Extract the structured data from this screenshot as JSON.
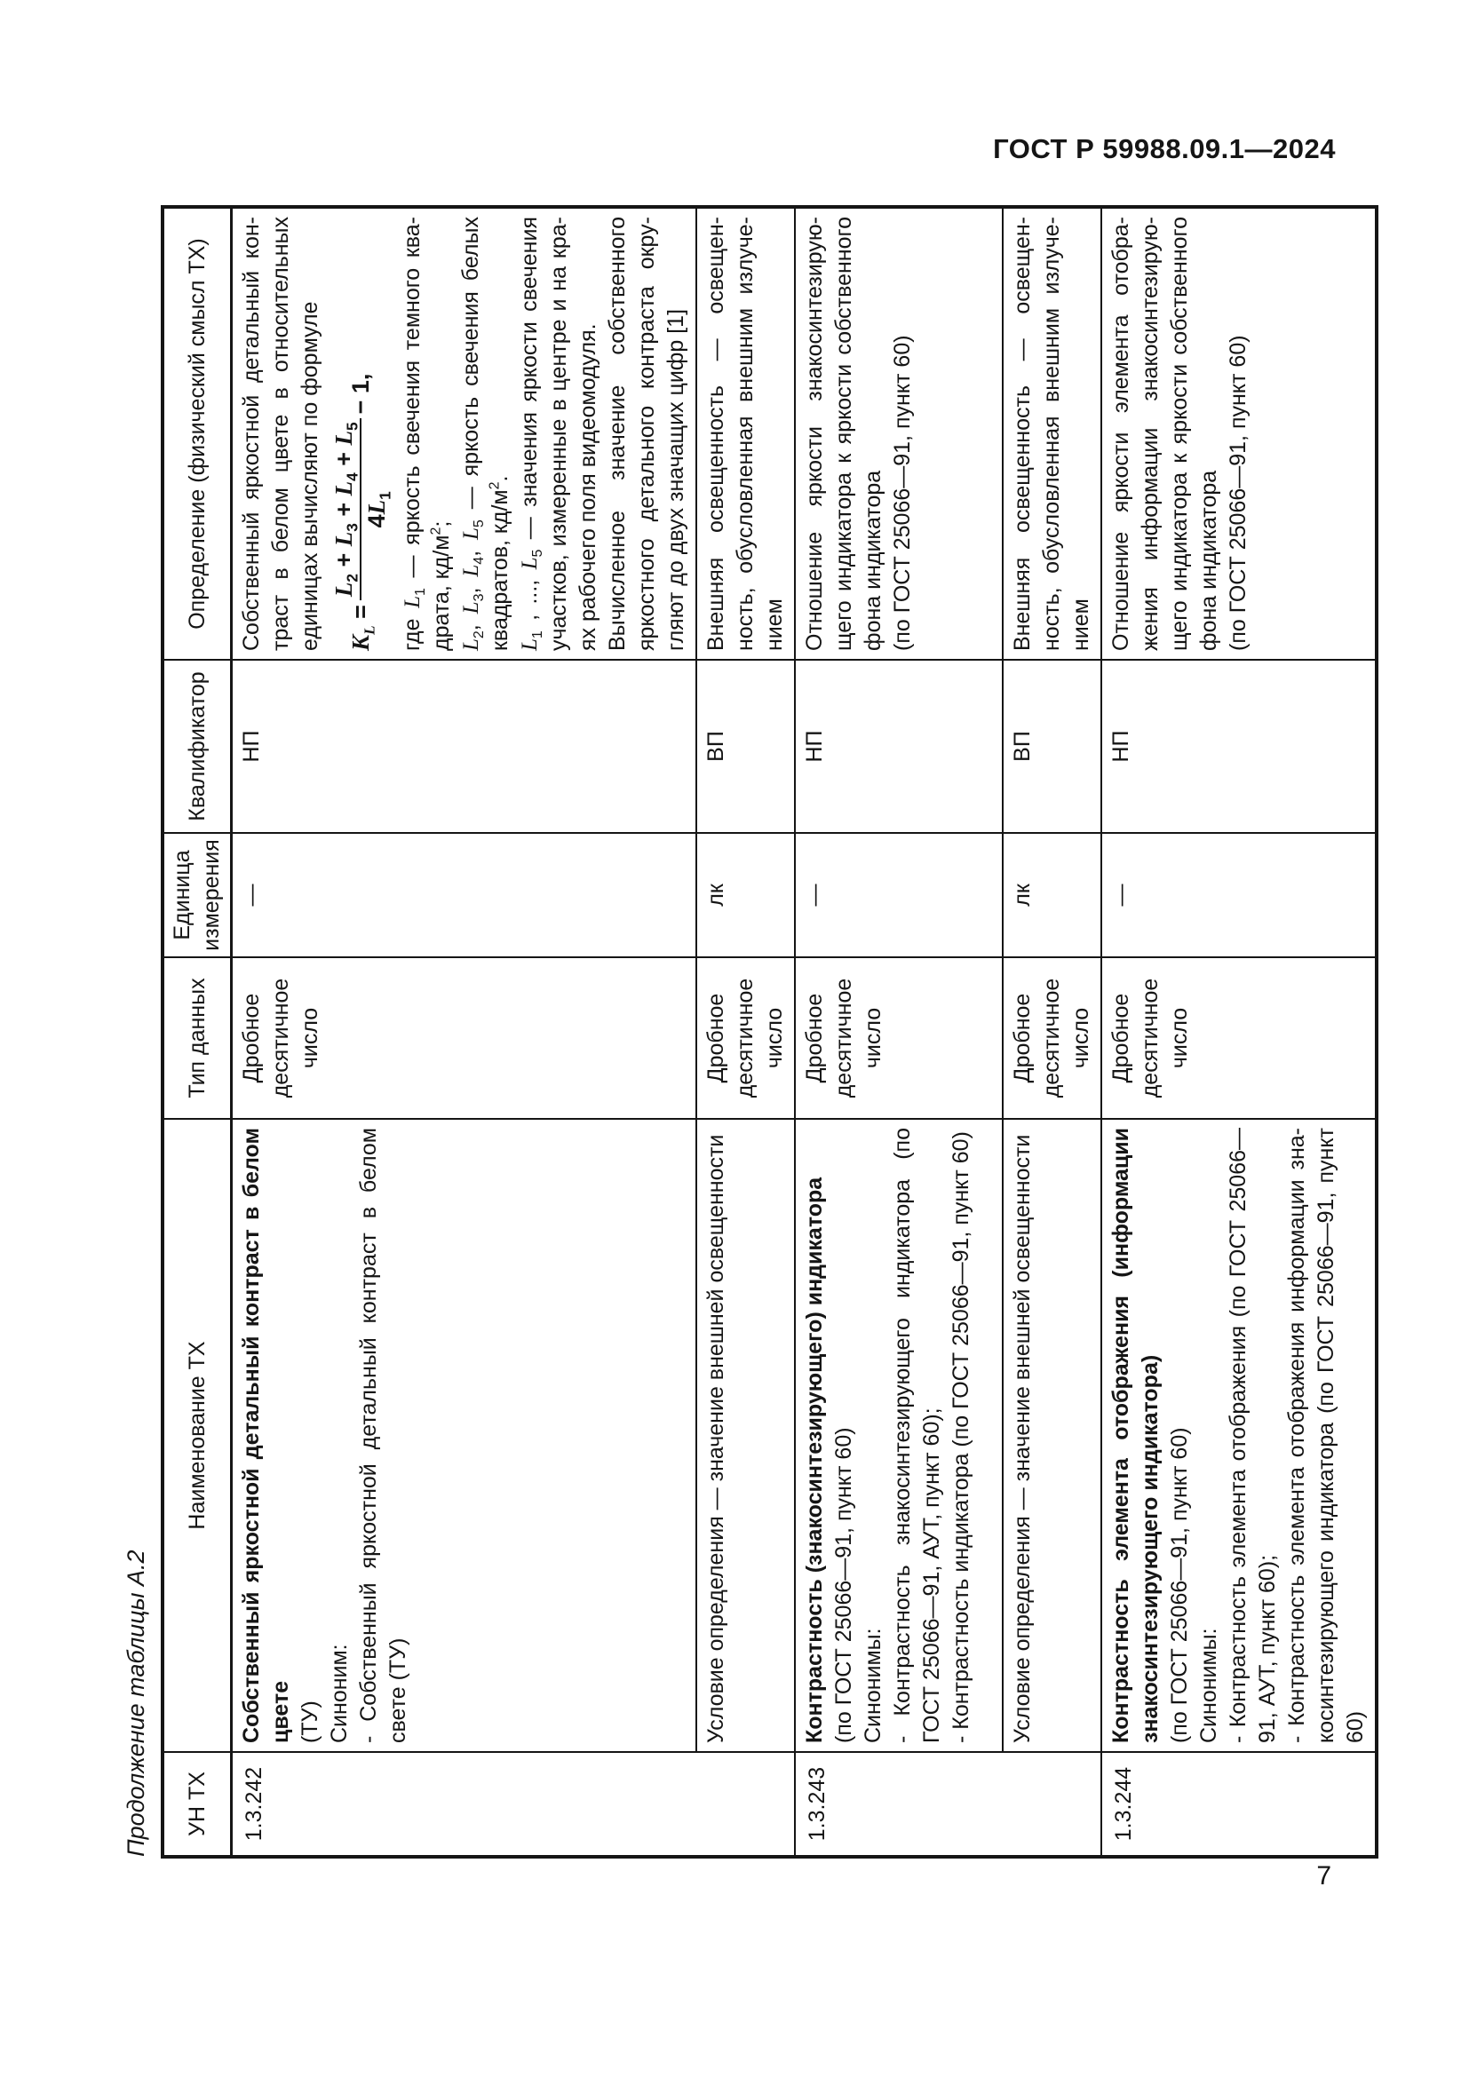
{
  "page": {
    "header": "ГОСТ Р 59988.09.1—2024",
    "page_number": "7",
    "table_caption": "Продолжение таблицы А.2"
  },
  "table": {
    "columns": [
      {
        "id": "un",
        "label": "УН ТХ"
      },
      {
        "id": "name",
        "label": "Наименование ТХ"
      },
      {
        "id": "type",
        "label": "Тип данных"
      },
      {
        "id": "unit",
        "label": "Единица измерения"
      },
      {
        "id": "qual",
        "label": "Квалификатор"
      },
      {
        "id": "def",
        "label": "Определение (физический смысл ТХ)"
      }
    ],
    "rows": [
      {
        "un": "1.3.242",
        "un_span": 2,
        "name": [
          {
            "runs": [
              {
                "t": "Собственный яркостной детальный контраст в белом цвете",
                "b": true
              }
            ]
          },
          {
            "runs": [
              {
                "t": "(ТУ)"
              }
            ]
          },
          {
            "runs": [
              {
                "t": "Синоним:"
              }
            ]
          },
          {
            "runs": [
              {
                "t": "- Собственный яркостной детальный контраст в белом свете (ТУ)"
              }
            ]
          }
        ],
        "type": [
          "Дробное",
          "десятичное",
          "число"
        ],
        "unit": "—",
        "qual": "НП",
        "def": [
          {
            "runs": [
              {
                "t": "Собственный яркостной детальный кон­траст в белом цвете в относительных единицах вычисляют по формуле"
              }
            ]
          },
          {
            "formula": {
              "lhs": [
                {
                  "t": "K",
                  "v": true,
                  "b": true
                },
                {
                  "t": "L",
                  "sub": true,
                  "v": true,
                  "b": true
                },
                {
                  "t": " = ",
                  "b": true
                }
              ],
              "num": [
                {
                  "t": "L",
                  "v": true,
                  "b": true
                },
                {
                  "t": "2",
                  "sub": true,
                  "b": true
                },
                {
                  "t": " + ",
                  "b": true
                },
                {
                  "t": "L",
                  "v": true,
                  "b": true
                },
                {
                  "t": "3",
                  "sub": true,
                  "b": true
                },
                {
                  "t": " + ",
                  "b": true
                },
                {
                  "t": "L",
                  "v": true,
                  "b": true
                },
                {
                  "t": "4",
                  "sub": true,
                  "b": true
                },
                {
                  "t": " + ",
                  "b": true
                },
                {
                  "t": "L",
                  "v": true,
                  "b": true
                },
                {
                  "t": "5",
                  "sub": true,
                  "b": true
                }
              ],
              "den": [
                {
                  "t": "4",
                  "b": true
                },
                {
                  "t": "L",
                  "v": true,
                  "b": true
                },
                {
                  "t": "1",
                  "sub": true,
                  "b": true
                }
              ],
              "tail": [
                {
                  "t": " − 1,",
                  "b": true
                }
              ]
            }
          },
          {
            "runs": [
              {
                "t": "где "
              },
              {
                "t": "L",
                "v": true
              },
              {
                "t": "1",
                "sub": true
              },
              {
                "t": " — яркость свечения темного ква­драта, кд/м"
              },
              {
                "t": "2",
                "sup": true
              },
              {
                "t": ";"
              }
            ]
          },
          {
            "runs": [
              {
                "t": "L",
                "v": true
              },
              {
                "t": "2",
                "sub": true
              },
              {
                "t": ", "
              },
              {
                "t": "L",
                "v": true
              },
              {
                "t": "3",
                "sub": true
              },
              {
                "t": ", "
              },
              {
                "t": "L",
                "v": true
              },
              {
                "t": "4",
                "sub": true
              },
              {
                "t": ", "
              },
              {
                "t": "L",
                "v": true
              },
              {
                "t": "5",
                "sub": true
              },
              {
                "t": " — яркость свечения белых квадратов, кд/м"
              },
              {
                "t": "2",
                "sup": true
              },
              {
                "t": "."
              }
            ]
          },
          {
            "runs": [
              {
                "t": "L",
                "v": true
              },
              {
                "t": "1",
                "sub": true
              },
              {
                "t": " , ..., "
              },
              {
                "t": "L",
                "v": true
              },
              {
                "t": "5",
                "sub": true
              },
              {
                "t": " — значения яркости свечения участков, измеренные в центре и на кра­ях рабочего поля видеомодуля."
              }
            ]
          },
          {
            "runs": [
              {
                "t": "Вычисленное значение собственного яркостного детального контраста окру­гляют до двух значащих цифр [1]"
              }
            ]
          }
        ]
      },
      {
        "sub": true,
        "name": [
          {
            "runs": [
              {
                "t": "Условие определения — значение внешней освещенно­сти"
              }
            ]
          }
        ],
        "type": [
          "Дробное",
          "десятичное",
          "число"
        ],
        "unit": "лк",
        "qual": "ВП",
        "def": [
          {
            "runs": [
              {
                "t": "Внешняя освещенность — освещен­ность, обусловленная внешним излуче­нием"
              }
            ]
          }
        ]
      },
      {
        "un": "1.3.243",
        "un_span": 2,
        "name": [
          {
            "runs": [
              {
                "t": "Контрастность (знакосинтезирующего) индикатора",
                "b": true
              }
            ]
          },
          {
            "runs": [
              {
                "t": "(по ГОСТ 25066—91, пункт 60)"
              }
            ]
          },
          {
            "runs": [
              {
                "t": "Синонимы:"
              }
            ]
          },
          {
            "runs": [
              {
                "t": "- Контрастность знакосинтезирующего индикатора (по ГОСТ 25066—91, АУТ, пункт 60);"
              }
            ]
          },
          {
            "runs": [
              {
                "t": "- Контрастность индикатора (по ГОСТ 25066—91, пункт 60)"
              }
            ]
          }
        ],
        "type": [
          "Дробное",
          "десятичное",
          "число"
        ],
        "unit": "—",
        "qual": "НП",
        "def": [
          {
            "runs": [
              {
                "t": "Отношение яркости знакосинтезирую­щего индикатора к яркости собственного фона индикатора"
              }
            ]
          },
          {
            "runs": [
              {
                "t": "(по ГОСТ 25066—91, пункт 60)"
              }
            ]
          }
        ]
      },
      {
        "sub": true,
        "name": [
          {
            "runs": [
              {
                "t": "Условие определения — значение внешней освещенно­сти"
              }
            ]
          }
        ],
        "type": [
          "Дробное",
          "десятичное",
          "число"
        ],
        "unit": "лк",
        "qual": "ВП",
        "def": [
          {
            "runs": [
              {
                "t": "Внешняя освещенность — освещен­ность, обусловленная внешним излуче­нием"
              }
            ]
          }
        ]
      },
      {
        "un": "1.3.244",
        "un_span": 1,
        "name": [
          {
            "runs": [
              {
                "t": "Контрастность элемента отображения (информации знакосинтезирующего индикатора)",
                "b": true
              }
            ]
          },
          {
            "runs": [
              {
                "t": "(по ГОСТ 25066—91, пункт 60)"
              }
            ]
          },
          {
            "runs": [
              {
                "t": "Синонимы:"
              }
            ]
          },
          {
            "runs": [
              {
                "t": "- Контрастность элемента отображения (по ГОСТ 25066—91, АУТ, пункт 60);"
              }
            ]
          },
          {
            "runs": [
              {
                "t": "- Контрастность элемента отображения информации зна­косинтезирующего индикатора (по ГОСТ 25066—91, пункт 60)"
              }
            ]
          }
        ],
        "type": [
          "Дробное",
          "десятичное",
          "число"
        ],
        "unit": "—",
        "qual": "НП",
        "def": [
          {
            "runs": [
              {
                "t": "Отношение яркости элемента отобра­жения информации знакосинтезирую­щего индикатора к яркости собственного фона индикатора"
              }
            ]
          },
          {
            "runs": [
              {
                "t": "(по ГОСТ 25066—91, пункт 60)"
              }
            ]
          }
        ]
      }
    ]
  }
}
